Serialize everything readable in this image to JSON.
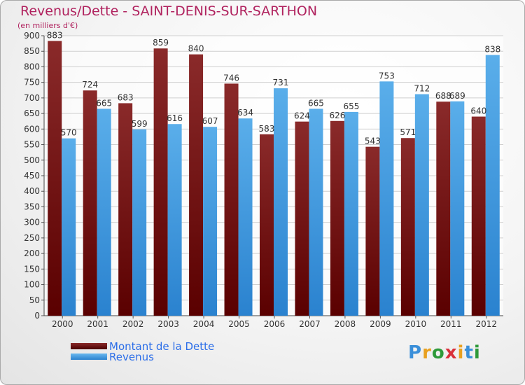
{
  "header": {
    "title": "Revenus/Dette - SAINT-DENIS-SUR-SARTHON",
    "subtitle": "(en milliers d'€)"
  },
  "legend": {
    "items": [
      {
        "label": "Montant de la Dette",
        "color": "#6b0f0f"
      },
      {
        "label": "Revenus",
        "color": "#4aa3e6"
      }
    ]
  },
  "logo": {
    "text": "Proxiti"
  },
  "colors": {
    "title": "#b0225e",
    "dette": "#7a1c1c",
    "revenus": "#4fa7e6",
    "legend_text": "#2c6ee8"
  },
  "chart_data": {
    "type": "bar",
    "title": "Revenus/Dette - SAINT-DENIS-SUR-SARTHON",
    "subtitle": "(en milliers d'€)",
    "categories": [
      "2000",
      "2001",
      "2002",
      "2003",
      "2004",
      "2005",
      "2006",
      "2007",
      "2008",
      "2009",
      "2010",
      "2011",
      "2012"
    ],
    "series": [
      {
        "name": "Montant de la Dette",
        "values": [
          883,
          724,
          683,
          859,
          840,
          746,
          583,
          624,
          626,
          543,
          571,
          688,
          640
        ]
      },
      {
        "name": "Revenus",
        "values": [
          570,
          665,
          599,
          616,
          607,
          634,
          731,
          665,
          655,
          753,
          712,
          689,
          838
        ]
      }
    ],
    "ylim": [
      0,
      900
    ],
    "yticks": [
      0,
      50,
      100,
      150,
      200,
      250,
      300,
      350,
      400,
      450,
      500,
      550,
      600,
      650,
      700,
      750,
      800,
      850,
      900
    ],
    "grid": true,
    "legend_position": "bottom-left"
  }
}
